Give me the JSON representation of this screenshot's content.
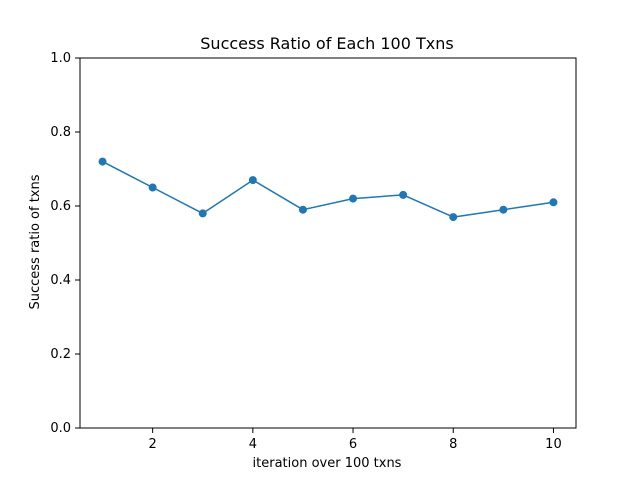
{
  "chart_data": {
    "type": "line",
    "title": "Success Ratio of Each 100 Txns",
    "xlabel": "iteration over 100 txns",
    "ylabel": "Success ratio of txns",
    "xlim": [
      0.55,
      10.45
    ],
    "ylim": [
      0,
      1
    ],
    "xticks": [
      2,
      4,
      6,
      8,
      10
    ],
    "xtick_labels": [
      "2",
      "4",
      "6",
      "8",
      "10"
    ],
    "yticks": [
      0,
      0.2,
      0.4,
      0.6,
      0.8,
      1.0
    ],
    "ytick_labels": [
      "0.0",
      "0.2",
      "0.4",
      "0.6",
      "0.8",
      "1.0"
    ],
    "grid": false,
    "series": [
      {
        "x": [
          1,
          2,
          3,
          4,
          5,
          6,
          7,
          8,
          9,
          10
        ],
        "y": [
          0.72,
          0.65,
          0.58,
          0.67,
          0.59,
          0.62,
          0.63,
          0.57,
          0.59,
          0.61
        ],
        "color": "#1f77b4",
        "marker": "circle"
      }
    ]
  }
}
